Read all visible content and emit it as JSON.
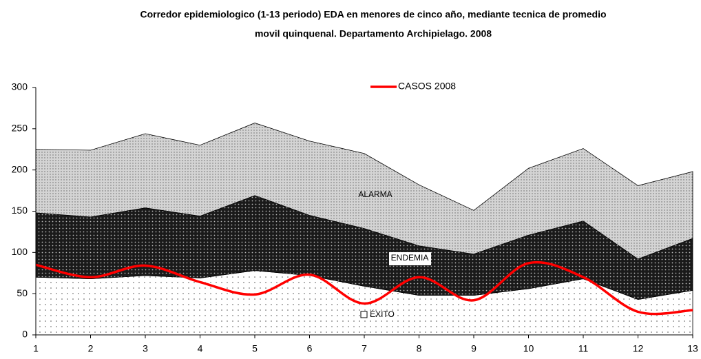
{
  "chart_data": {
    "type": "stacked_area",
    "title": [
      "Corredor epidemiologico (1-13 periodo) EDA en menores de cinco año,  mediante tecnica de promedio",
      "movil quinquenal.  Departamento Archipielago.  2008"
    ],
    "x": [
      1,
      2,
      3,
      4,
      5,
      6,
      7,
      8,
      9,
      10,
      11,
      12,
      13
    ],
    "xlim": [
      1,
      13
    ],
    "xticks": [
      1,
      2,
      3,
      4,
      5,
      6,
      7,
      8,
      9,
      10,
      11,
      12,
      13
    ],
    "ylim": [
      0,
      300
    ],
    "yticks": [
      0,
      50,
      100,
      150,
      200,
      250,
      300
    ],
    "series": [
      {
        "name": "ÉXITO",
        "color": "#ffffff",
        "values": [
          70,
          68,
          72,
          69,
          78,
          72,
          59,
          48,
          48,
          56,
          68,
          43,
          54
        ]
      },
      {
        "name": "ENDEMIA",
        "color": "#1a1a1a",
        "values": [
          78,
          75,
          82,
          75,
          91,
          73,
          70,
          60,
          50,
          65,
          70,
          49,
          63
        ]
      },
      {
        "name": "ALARMA",
        "color": "#d4d4d4",
        "values": [
          77,
          81,
          90,
          86,
          88,
          90,
          91,
          74,
          53,
          81,
          88,
          89,
          81
        ]
      }
    ],
    "line": {
      "name": "CASOS 2008",
      "color": "#ff0000",
      "values": [
        85,
        70,
        84,
        64,
        49,
        73,
        38,
        70,
        42,
        87,
        70,
        28,
        30
      ]
    }
  }
}
